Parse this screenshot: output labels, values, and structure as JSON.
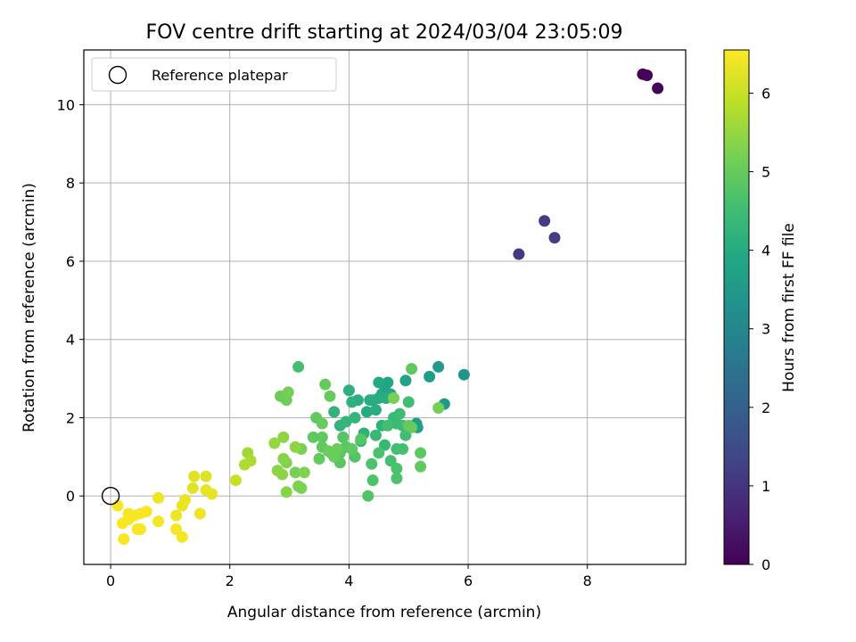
{
  "chart_data": {
    "type": "scatter",
    "title": "FOV centre drift starting at 2024/03/04 23:05:09",
    "xlabel": "Angular distance from reference (arcmin)",
    "ylabel": "Rotation from reference (arcmin)",
    "colorbar_label": "Hours from first FF file",
    "xlim": [
      -0.45,
      9.65
    ],
    "ylim": [
      -1.75,
      11.4
    ],
    "clim": [
      0,
      6.55
    ],
    "colormap": "viridis",
    "grid": true,
    "legend_position": "top-left",
    "xticks": [
      "0",
      "2",
      "4",
      "6",
      "8"
    ],
    "yticks": [
      "0",
      "2",
      "4",
      "6",
      "8",
      "10"
    ],
    "cticks": [
      "0",
      "1",
      "2",
      "3",
      "4",
      "5",
      "6"
    ],
    "reference": {
      "label": "Reference platepar",
      "x": 0,
      "y": 0
    },
    "series": [
      {
        "points": [
          [
            8.93,
            10.78,
            0.02
          ],
          [
            9.0,
            10.75,
            0.05
          ],
          [
            9.18,
            10.42,
            0.08
          ],
          [
            6.85,
            6.18,
            1.1
          ],
          [
            7.28,
            7.03,
            1.15
          ],
          [
            7.45,
            6.6,
            1.2
          ],
          [
            5.93,
            3.1,
            3.4
          ],
          [
            5.6,
            2.35,
            3.5
          ],
          [
            5.5,
            3.3,
            3.55
          ],
          [
            5.35,
            3.05,
            3.6
          ],
          [
            5.13,
            1.85,
            3.65
          ],
          [
            5.15,
            1.75,
            3.7
          ],
          [
            4.95,
            2.95,
            3.75
          ],
          [
            4.6,
            2.8,
            3.8
          ],
          [
            4.65,
            2.9,
            3.85
          ],
          [
            4.55,
            2.6,
            3.9
          ],
          [
            4.5,
            2.9,
            3.95
          ],
          [
            4.7,
            2.6,
            3.9
          ],
          [
            4.3,
            2.15,
            4.0
          ],
          [
            4.4,
            2.45,
            4.0
          ],
          [
            4.35,
            2.45,
            4.05
          ],
          [
            4.5,
            2.5,
            4.05
          ],
          [
            4.62,
            2.5,
            4.1
          ],
          [
            4.45,
            2.2,
            4.1
          ],
          [
            4.15,
            2.45,
            4.1
          ],
          [
            4.05,
            2.4,
            4.15
          ],
          [
            4.0,
            2.7,
            4.15
          ],
          [
            4.55,
            1.8,
            4.2
          ],
          [
            4.25,
            1.6,
            4.2
          ],
          [
            3.85,
            1.8,
            4.25
          ],
          [
            3.75,
            2.15,
            4.25
          ],
          [
            3.95,
            1.9,
            4.3
          ],
          [
            4.1,
            2.0,
            4.3
          ],
          [
            4.2,
            1.4,
            4.3
          ],
          [
            4.45,
            1.55,
            4.35
          ],
          [
            4.6,
            1.3,
            4.35
          ],
          [
            4.75,
            2.0,
            4.4
          ],
          [
            4.8,
            1.85,
            4.4
          ],
          [
            4.85,
            2.1,
            4.45
          ],
          [
            4.9,
            1.8,
            4.45
          ],
          [
            4.95,
            1.55,
            4.5
          ],
          [
            5.0,
            2.4,
            4.5
          ],
          [
            4.65,
            1.8,
            4.55
          ],
          [
            4.8,
            1.2,
            4.55
          ],
          [
            4.9,
            1.2,
            4.6
          ],
          [
            4.7,
            0.9,
            4.6
          ],
          [
            4.8,
            0.7,
            4.65
          ],
          [
            4.5,
            1.1,
            4.65
          ],
          [
            4.38,
            0.82,
            4.7
          ],
          [
            4.4,
            0.4,
            4.7
          ],
          [
            4.8,
            0.45,
            4.7
          ],
          [
            4.32,
            0.0,
            4.75
          ],
          [
            4.1,
            1.0,
            4.75
          ],
          [
            4.2,
            1.45,
            4.8
          ],
          [
            3.9,
            1.5,
            4.8
          ],
          [
            3.7,
            1.1,
            4.8
          ],
          [
            3.85,
            1.1,
            4.85
          ],
          [
            3.85,
            0.85,
            4.85
          ],
          [
            3.95,
            1.25,
            4.85
          ],
          [
            4.05,
            1.2,
            4.9
          ],
          [
            3.4,
            1.5,
            4.9
          ],
          [
            3.55,
            1.5,
            4.9
          ],
          [
            3.5,
            0.95,
            4.95
          ],
          [
            3.55,
            1.25,
            4.95
          ],
          [
            3.45,
            2.0,
            4.95
          ],
          [
            3.55,
            1.85,
            5.0
          ],
          [
            3.6,
            2.85,
            5.0
          ],
          [
            3.68,
            2.55,
            5.0
          ],
          [
            3.15,
            3.3,
            4.6
          ],
          [
            3.65,
            1.15,
            5.05
          ],
          [
            3.75,
            1.0,
            5.05
          ],
          [
            3.8,
            1.2,
            5.05
          ],
          [
            5.05,
            3.25,
            4.9
          ],
          [
            5.0,
            1.8,
            4.95
          ],
          [
            4.75,
            2.5,
            5.2
          ],
          [
            5.2,
            1.1,
            4.9
          ],
          [
            5.2,
            0.75,
            4.95
          ],
          [
            5.5,
            2.25,
            5.15
          ],
          [
            5.05,
            1.75,
            5.0
          ],
          [
            2.85,
            2.55,
            5.1
          ],
          [
            2.95,
            2.45,
            5.1
          ],
          [
            2.98,
            2.65,
            5.15
          ],
          [
            3.2,
            1.2,
            5.2
          ],
          [
            3.1,
            0.6,
            5.2
          ],
          [
            3.15,
            0.25,
            5.25
          ],
          [
            3.2,
            0.2,
            5.25
          ],
          [
            3.25,
            0.6,
            5.3
          ],
          [
            2.95,
            0.85,
            5.3
          ],
          [
            2.9,
            0.95,
            5.35
          ],
          [
            2.95,
            0.1,
            5.35
          ],
          [
            2.8,
            0.65,
            5.4
          ],
          [
            2.88,
            0.55,
            5.4
          ],
          [
            2.9,
            1.5,
            5.45
          ],
          [
            3.1,
            1.25,
            5.45
          ],
          [
            2.75,
            1.35,
            5.5
          ],
          [
            2.3,
            1.1,
            5.6
          ],
          [
            2.35,
            0.9,
            5.7
          ],
          [
            2.25,
            0.8,
            5.75
          ],
          [
            2.1,
            0.4,
            6.0
          ],
          [
            1.6,
            0.5,
            6.2
          ],
          [
            1.4,
            0.5,
            6.25
          ],
          [
            1.38,
            0.2,
            6.25
          ],
          [
            1.6,
            0.15,
            6.3
          ],
          [
            1.7,
            0.05,
            6.3
          ],
          [
            1.25,
            -0.1,
            6.35
          ],
          [
            1.2,
            -0.25,
            6.35
          ],
          [
            1.5,
            -0.45,
            6.4
          ],
          [
            1.1,
            -0.5,
            6.4
          ],
          [
            0.8,
            -0.05,
            6.4
          ],
          [
            0.8,
            -0.65,
            6.45
          ],
          [
            1.1,
            -0.85,
            6.45
          ],
          [
            1.2,
            -1.05,
            6.45
          ],
          [
            0.6,
            -0.4,
            6.5
          ],
          [
            0.5,
            -0.45,
            6.5
          ],
          [
            0.45,
            -0.85,
            6.5
          ],
          [
            0.5,
            -0.85,
            6.5
          ],
          [
            0.4,
            -0.5,
            6.5
          ],
          [
            0.3,
            -0.45,
            6.5
          ],
          [
            0.3,
            -0.6,
            6.5
          ],
          [
            0.2,
            -0.7,
            6.5
          ],
          [
            0.12,
            -0.25,
            6.5
          ],
          [
            0.22,
            -1.1,
            6.5
          ]
        ]
      }
    ]
  }
}
